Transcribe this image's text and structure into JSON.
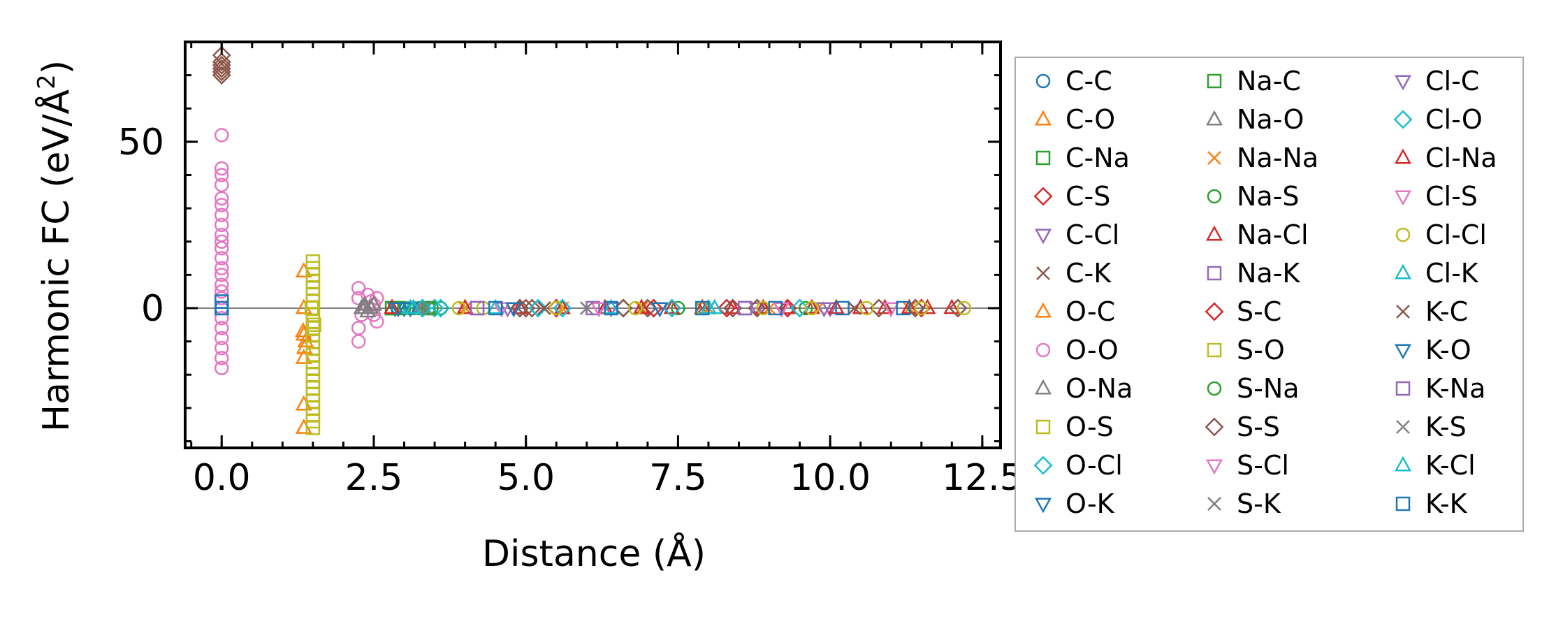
{
  "chart_data": {
    "type": "scatter",
    "xlabel": "Distance (Å)",
    "ylabel_main": "Harmonic FC (eV/Å",
    "ylabel_sup": "2",
    "ylabel_close": ")",
    "xlim": [
      -0.6,
      12.8
    ],
    "ylim": [
      -42,
      80
    ],
    "xticks": [
      0.0,
      2.5,
      5.0,
      7.5,
      10.0,
      12.5
    ],
    "xtick_labels": [
      "0.0",
      "2.5",
      "5.0",
      "7.5",
      "10.0",
      "12.5"
    ],
    "yticks": [
      0,
      50
    ],
    "ytick_labels": [
      "0",
      "50"
    ],
    "reference_line_y": 0,
    "legend_position": "right, outside plot",
    "series": [
      {
        "name": "C-C",
        "marker": "circle",
        "color": "#1f77b4",
        "points": [
          [
            0,
            0
          ]
        ]
      },
      {
        "name": "C-O",
        "marker": "triangle",
        "color": "#ff7f0e",
        "points": [
          [
            1.35,
            11
          ],
          [
            1.35,
            0
          ],
          [
            1.35,
            -8
          ],
          [
            1.38,
            -10
          ],
          [
            1.35,
            -15
          ],
          [
            1.35,
            -29
          ],
          [
            1.35,
            -36
          ]
        ]
      },
      {
        "name": "C-Na",
        "marker": "square",
        "color": "#2ca02c",
        "points": [
          [
            2.8,
            0
          ],
          [
            2.9,
            0
          ]
        ]
      },
      {
        "name": "C-S",
        "marker": "diamond",
        "color": "#d62728",
        "points": [
          [
            5.5,
            0
          ],
          [
            6.6,
            0
          ],
          [
            8.3,
            0
          ],
          [
            9.3,
            0
          ]
        ]
      },
      {
        "name": "C-Cl",
        "marker": "tri-down",
        "color": "#9467bd",
        "points": [
          [
            4.7,
            0
          ],
          [
            6.4,
            0
          ],
          [
            8.8,
            0
          ],
          [
            10.0,
            0
          ]
        ]
      },
      {
        "name": "C-K",
        "marker": "x",
        "color": "#8c564b",
        "points": [
          [
            5.3,
            0
          ],
          [
            7.9,
            0
          ],
          [
            10.4,
            0
          ]
        ]
      },
      {
        "name": "O-C",
        "marker": "triangle",
        "color": "#ff7f0e",
        "points": [
          [
            1.34,
            -7
          ],
          [
            1.36,
            -12
          ]
        ]
      },
      {
        "name": "O-O",
        "marker": "circle",
        "color": "#e377c2",
        "points": [
          [
            0,
            52
          ],
          [
            0,
            42
          ],
          [
            0,
            40
          ],
          [
            0,
            37
          ],
          [
            0,
            33
          ],
          [
            0,
            31
          ],
          [
            0,
            28
          ],
          [
            0,
            25
          ],
          [
            0,
            22
          ],
          [
            0,
            20
          ],
          [
            0,
            18
          ],
          [
            0,
            15
          ],
          [
            0,
            12
          ],
          [
            0,
            10
          ],
          [
            0,
            7
          ],
          [
            0,
            5
          ],
          [
            0,
            3
          ],
          [
            0,
            -3
          ],
          [
            0,
            -6
          ],
          [
            0,
            -9
          ],
          [
            0,
            -12
          ],
          [
            0,
            -15
          ],
          [
            0,
            -18
          ],
          [
            2.25,
            6
          ],
          [
            2.25,
            3
          ],
          [
            2.3,
            -2
          ],
          [
            2.25,
            -6
          ],
          [
            2.25,
            -10
          ],
          [
            2.4,
            4
          ],
          [
            2.45,
            2
          ],
          [
            2.5,
            1
          ],
          [
            2.55,
            3
          ],
          [
            2.5,
            -2
          ],
          [
            2.55,
            -4
          ]
        ]
      },
      {
        "name": "O-Na",
        "marker": "triangle",
        "color": "#7f7f7f",
        "points": [
          [
            2.3,
            0
          ],
          [
            2.35,
            1
          ],
          [
            2.4,
            -1
          ],
          [
            2.45,
            0
          ],
          [
            2.5,
            1
          ]
        ]
      },
      {
        "name": "O-S",
        "marker": "square",
        "color": "#bcbd22",
        "points": [
          [
            1.5,
            14
          ],
          [
            1.5,
            12
          ],
          [
            1.5,
            10
          ],
          [
            1.5,
            8
          ],
          [
            1.5,
            6
          ],
          [
            1.5,
            4
          ],
          [
            1.5,
            2
          ],
          [
            1.5,
            0
          ],
          [
            1.5,
            -2
          ],
          [
            1.5,
            -4
          ],
          [
            1.5,
            -6
          ],
          [
            1.5,
            -8
          ],
          [
            1.5,
            -10
          ],
          [
            1.5,
            -12
          ],
          [
            1.5,
            -14
          ],
          [
            1.5,
            -16
          ],
          [
            1.5,
            -18
          ],
          [
            1.5,
            -20
          ],
          [
            1.5,
            -22
          ],
          [
            1.5,
            -24
          ],
          [
            1.5,
            -26
          ],
          [
            1.5,
            -28
          ],
          [
            1.5,
            -30
          ],
          [
            1.5,
            -32
          ],
          [
            1.5,
            -34
          ],
          [
            1.5,
            -36
          ]
        ]
      },
      {
        "name": "O-Cl",
        "marker": "diamond",
        "color": "#17becf",
        "points": [
          [
            3.3,
            0
          ],
          [
            3.5,
            0
          ]
        ]
      },
      {
        "name": "O-K",
        "marker": "tri-down",
        "color": "#1f77b4",
        "points": [
          [
            2.85,
            0
          ],
          [
            3.0,
            0
          ]
        ]
      },
      {
        "name": "Na-C",
        "marker": "square",
        "color": "#2ca02c",
        "points": [
          [
            2.8,
            0
          ],
          [
            3.4,
            0
          ]
        ]
      },
      {
        "name": "Na-O",
        "marker": "triangle",
        "color": "#7f7f7f",
        "points": [
          [
            2.35,
            0
          ],
          [
            2.45,
            0
          ]
        ]
      },
      {
        "name": "Na-Na",
        "marker": "x",
        "color": "#ff7f0e",
        "points": [
          [
            4.0,
            0
          ],
          [
            5.6,
            0
          ],
          [
            6.9,
            0
          ],
          [
            8.0,
            0
          ],
          [
            9.0,
            0
          ],
          [
            9.8,
            0
          ],
          [
            11.3,
            0
          ]
        ]
      },
      {
        "name": "Na-S",
        "marker": "circle",
        "color": "#2ca02c",
        "points": [
          [
            3.0,
            0
          ],
          [
            3.15,
            0
          ],
          [
            3.3,
            0
          ],
          [
            3.45,
            0
          ],
          [
            3.6,
            0
          ],
          [
            7.5,
            0
          ],
          [
            9.6,
            0
          ]
        ]
      },
      {
        "name": "Na-Cl",
        "marker": "triangle",
        "color": "#d62728",
        "points": [
          [
            2.8,
            0
          ],
          [
            4.0,
            0
          ],
          [
            4.9,
            0
          ],
          [
            5.6,
            0
          ],
          [
            6.3,
            0
          ],
          [
            6.9,
            0
          ],
          [
            7.4,
            0
          ],
          [
            7.9,
            0
          ],
          [
            8.4,
            0
          ],
          [
            8.9,
            0
          ],
          [
            9.3,
            0
          ],
          [
            9.7,
            0
          ],
          [
            10.1,
            0
          ],
          [
            10.5,
            0
          ],
          [
            10.9,
            0
          ],
          [
            11.3,
            0
          ],
          [
            11.6,
            0
          ],
          [
            12.0,
            0
          ]
        ]
      },
      {
        "name": "Na-K",
        "marker": "square",
        "color": "#9467bd",
        "points": [
          [
            4.2,
            0
          ],
          [
            6.1,
            0
          ],
          [
            8.6,
            0
          ]
        ]
      },
      {
        "name": "S-C",
        "marker": "diamond",
        "color": "#d62728",
        "points": [
          [
            7.1,
            0
          ],
          [
            11.5,
            0
          ]
        ]
      },
      {
        "name": "S-O",
        "marker": "square",
        "color": "#bcbd22",
        "points": [
          [
            1.48,
            0
          ],
          [
            1.52,
            -5
          ]
        ]
      },
      {
        "name": "S-Na",
        "marker": "circle",
        "color": "#2ca02c",
        "points": [
          [
            3.1,
            0
          ],
          [
            3.25,
            0
          ],
          [
            3.4,
            0
          ]
        ]
      },
      {
        "name": "S-S",
        "marker": "diamond",
        "color": "#8c564b",
        "points": [
          [
            0,
            76
          ],
          [
            0,
            74
          ],
          [
            0,
            73
          ],
          [
            0,
            72
          ],
          [
            0,
            71
          ],
          [
            0,
            70
          ],
          [
            4.9,
            0
          ],
          [
            5.0,
            0
          ],
          [
            5.1,
            0
          ],
          [
            6.6,
            0
          ],
          [
            7.0,
            0
          ],
          [
            8.4,
            0
          ],
          [
            8.8,
            0
          ],
          [
            10.8,
            0
          ],
          [
            11.4,
            0
          ],
          [
            12.1,
            0
          ]
        ]
      },
      {
        "name": "S-Cl",
        "marker": "tri-down",
        "color": "#e377c2",
        "points": [
          [
            4.6,
            0
          ],
          [
            6.2,
            0
          ],
          [
            9.2,
            0
          ],
          [
            11.0,
            0
          ]
        ]
      },
      {
        "name": "S-K",
        "marker": "x",
        "color": "#7f7f7f",
        "points": [
          [
            3.2,
            0
          ],
          [
            3.35,
            0
          ]
        ]
      },
      {
        "name": "Cl-C",
        "marker": "tri-down",
        "color": "#9467bd",
        "points": [
          [
            4.8,
            0
          ],
          [
            9.9,
            0
          ]
        ]
      },
      {
        "name": "Cl-O",
        "marker": "diamond",
        "color": "#17becf",
        "points": [
          [
            3.3,
            0
          ],
          [
            3.6,
            0
          ],
          [
            5.2,
            0
          ],
          [
            5.6,
            0
          ],
          [
            7.4,
            0
          ],
          [
            9.5,
            0
          ]
        ]
      },
      {
        "name": "Cl-Na",
        "marker": "triangle",
        "color": "#d62728",
        "points": [
          [
            2.8,
            0
          ],
          [
            4.0,
            0
          ],
          [
            6.9,
            0
          ]
        ]
      },
      {
        "name": "Cl-S",
        "marker": "tri-down",
        "color": "#e377c2",
        "points": [
          [
            4.6,
            0
          ],
          [
            9.2,
            0
          ]
        ]
      },
      {
        "name": "Cl-Cl",
        "marker": "circle",
        "color": "#bcbd22",
        "points": [
          [
            3.9,
            0
          ],
          [
            4.3,
            0
          ],
          [
            5.5,
            0
          ],
          [
            6.8,
            0
          ],
          [
            7.9,
            0
          ],
          [
            8.9,
            0
          ],
          [
            9.7,
            0
          ],
          [
            10.6,
            0
          ],
          [
            11.5,
            0
          ],
          [
            12.2,
            0
          ]
        ]
      },
      {
        "name": "Cl-K",
        "marker": "triangle",
        "color": "#17becf",
        "points": [
          [
            3.1,
            0
          ],
          [
            4.5,
            0
          ],
          [
            6.4,
            0
          ],
          [
            8.0,
            0
          ]
        ]
      },
      {
        "name": "K-C",
        "marker": "x",
        "color": "#8c564b",
        "points": [
          [
            5.3,
            0
          ],
          [
            10.4,
            0
          ]
        ]
      },
      {
        "name": "K-O",
        "marker": "tri-down",
        "color": "#1f77b4",
        "points": [
          [
            2.9,
            0
          ],
          [
            3.1,
            0
          ],
          [
            4.8,
            0
          ],
          [
            7.2,
            0
          ]
        ]
      },
      {
        "name": "K-Na",
        "marker": "square",
        "color": "#9467bd",
        "points": [
          [
            4.2,
            0
          ],
          [
            8.6,
            0
          ]
        ]
      },
      {
        "name": "K-S",
        "marker": "x",
        "color": "#7f7f7f",
        "points": [
          [
            3.25,
            0
          ],
          [
            6.0,
            0
          ]
        ]
      },
      {
        "name": "K-Cl",
        "marker": "triangle",
        "color": "#17becf",
        "points": [
          [
            3.15,
            0
          ],
          [
            8.1,
            0
          ]
        ]
      },
      {
        "name": "K-K",
        "marker": "square",
        "color": "#1f77b4",
        "points": [
          [
            0,
            0
          ],
          [
            0,
            2
          ],
          [
            4.5,
            0
          ],
          [
            6.4,
            0
          ],
          [
            7.9,
            0
          ],
          [
            9.1,
            0
          ],
          [
            10.2,
            0
          ],
          [
            11.2,
            0
          ]
        ]
      }
    ]
  }
}
